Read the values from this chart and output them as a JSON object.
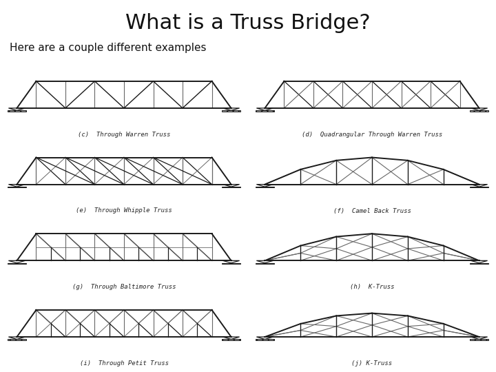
{
  "title": "What is a Truss Bridge?",
  "subtitle": "Here are a couple different examples",
  "background_color": "#ffffff",
  "title_fontsize": 22,
  "subtitle_fontsize": 11,
  "bridges": [
    {
      "label": "(c)  Through Warren Truss",
      "type": "warren_through"
    },
    {
      "label": "(d)  Quadrangular Through Warren Truss",
      "type": "quad_warren"
    },
    {
      "label": "(e)  Through Whipple Truss",
      "type": "whipple_through"
    },
    {
      "label": "(f)  Camel Back Truss",
      "type": "camel_back"
    },
    {
      "label": "(g)  Through Baltimore Truss",
      "type": "baltimore_through"
    },
    {
      "label": "(h)  K-Truss",
      "type": "k_truss_arch"
    },
    {
      "label": "(i)  Through Petit Truss",
      "type": "petit_through"
    },
    {
      "label": "(j) K-Truss",
      "type": "k_truss_arch2"
    }
  ],
  "line_color": "#1a1a1a",
  "thin_color": "#666666",
  "label_fontsize": 6.5
}
